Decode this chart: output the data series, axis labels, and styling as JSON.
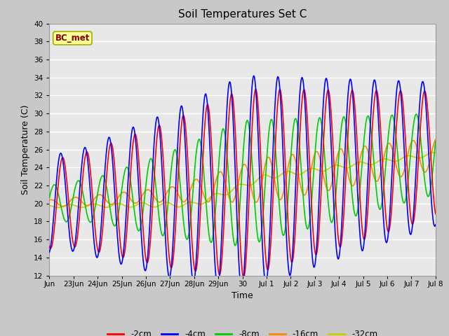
{
  "title": "Soil Temperatures Set C",
  "xlabel": "Time",
  "ylabel": "Soil Temperature (C)",
  "ylim": [
    12,
    40
  ],
  "yticks": [
    12,
    14,
    16,
    18,
    20,
    22,
    24,
    26,
    28,
    30,
    32,
    34,
    36,
    38,
    40
  ],
  "legend_labels": [
    "-2cm",
    "-4cm",
    "-8cm",
    "-16cm",
    "-32cm"
  ],
  "legend_colors": [
    "#ff0000",
    "#0000ff",
    "#00cc00",
    "#ff8800",
    "#cccc00"
  ],
  "annotation_text": "BC_met",
  "annotation_bg": "#ffff99",
  "annotation_fg": "#880000",
  "x_labels": [
    "Jun",
    "23Jun",
    "24Jun",
    "25Jun",
    "26Jun",
    "27Jun",
    "28Jun",
    "29Jun",
    "30",
    "Jul 1",
    "Jul 2",
    "Jul 3",
    "Jul 4",
    "Jul 5",
    "Jul 6",
    "Jul 7",
    "Jul 8"
  ],
  "plot_bg": "#e8e8e8",
  "fig_bg": "#c8c8c8"
}
